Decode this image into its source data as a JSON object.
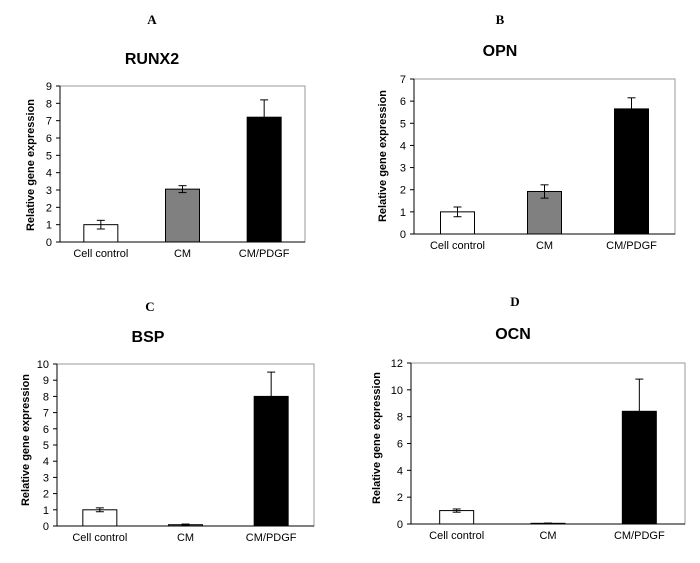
{
  "chart_data": [
    {
      "panel": "A",
      "type": "bar",
      "title": "RUNX2",
      "ylabel": "Relative gene expression",
      "categories": [
        "Cell control",
        "CM",
        "CM/PDGF"
      ],
      "values": [
        1.0,
        3.05,
        7.2
      ],
      "errors": [
        0.25,
        0.2,
        1.0
      ],
      "bar_colors": [
        "#ffffff",
        "#808080",
        "#000000"
      ],
      "ylim": [
        0,
        9
      ],
      "yticks": [
        0,
        1,
        2,
        3,
        4,
        5,
        6,
        7,
        8,
        9
      ],
      "yticklabels": [
        "0",
        "1",
        "2",
        "3",
        "4",
        "5",
        "6",
        "7",
        "8",
        "9"
      ]
    },
    {
      "panel": "B",
      "type": "bar",
      "title": "OPN",
      "ylabel": "Relative gene expression",
      "categories": [
        "Cell control",
        "CM",
        "CM/PDGF"
      ],
      "values": [
        1.0,
        1.92,
        5.65
      ],
      "errors": [
        0.22,
        0.3,
        0.5
      ],
      "bar_colors": [
        "#ffffff",
        "#808080",
        "#000000"
      ],
      "ylim": [
        0,
        7
      ],
      "yticks": [
        0,
        1,
        2,
        3,
        4,
        5,
        6,
        7
      ],
      "yticklabels": [
        "0",
        "1",
        "2",
        "3",
        "4",
        "5",
        "6",
        "7"
      ]
    },
    {
      "panel": "C",
      "type": "bar",
      "title": "BSP",
      "ylabel": "Relative gene expression",
      "categories": [
        "Cell control",
        "CM",
        "CM/PDGF"
      ],
      "values": [
        1.0,
        0.08,
        8.0
      ],
      "errors": [
        0.12,
        0.04,
        1.5
      ],
      "bar_colors": [
        "#ffffff",
        "#808080",
        "#000000"
      ],
      "ylim": [
        0,
        10
      ],
      "yticks": [
        0,
        1,
        2,
        3,
        4,
        5,
        6,
        7,
        8,
        9,
        10
      ],
      "yticklabels": [
        "0",
        "1",
        "2",
        "3",
        "4",
        "5",
        "6",
        "7",
        "8",
        "9",
        "10"
      ]
    },
    {
      "panel": "D",
      "type": "bar",
      "title": "OCN",
      "ylabel": "Relative gene expression",
      "categories": [
        "Cell control",
        "CM",
        "CM/PDGF"
      ],
      "values": [
        1.0,
        0.05,
        8.4
      ],
      "errors": [
        0.12,
        0.02,
        2.4
      ],
      "bar_colors": [
        "#ffffff",
        "#808080",
        "#000000"
      ],
      "ylim": [
        0,
        12
      ],
      "yticks": [
        0,
        2,
        4,
        6,
        8,
        10,
        12
      ],
      "yticklabels": [
        "0",
        "2",
        "4",
        "6",
        "8",
        "10",
        "12"
      ]
    }
  ]
}
